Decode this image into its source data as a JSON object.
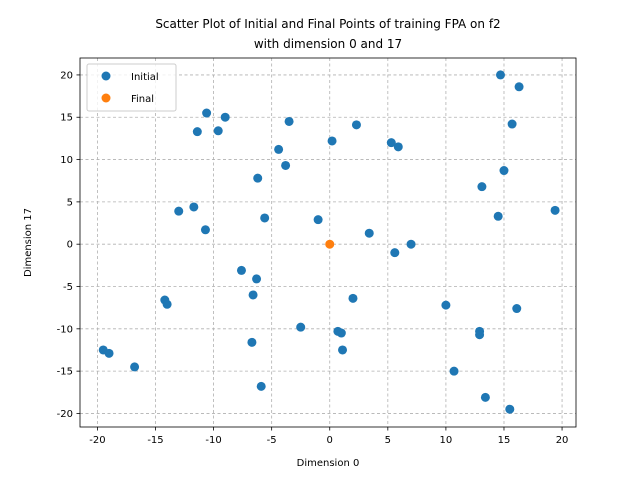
{
  "chart_data": {
    "type": "scatter",
    "title": [
      "Scatter Plot of Initial and Final Points of training FPA on f2",
      "with dimension 0 and 17"
    ],
    "xlabel": "Dimension 0",
    "ylabel": "Dimension 17",
    "xlim": [
      -21.5,
      21.2
    ],
    "ylim": [
      -21.6,
      22.0
    ],
    "xticks": [
      -20,
      -15,
      -10,
      -5,
      0,
      5,
      10,
      15,
      20
    ],
    "yticks": [
      -20,
      -15,
      -10,
      -5,
      0,
      5,
      10,
      15,
      20
    ],
    "grid": true,
    "legend_position": "top-left",
    "series": [
      {
        "name": "Initial",
        "color": "#1f77b4",
        "points": [
          [
            14.7,
            20.0
          ],
          [
            16.3,
            18.6
          ],
          [
            -10.6,
            15.5
          ],
          [
            -9.0,
            15.0
          ],
          [
            -3.5,
            14.5
          ],
          [
            -11.4,
            13.3
          ],
          [
            -9.6,
            13.4
          ],
          [
            2.3,
            14.1
          ],
          [
            15.7,
            14.2
          ],
          [
            0.2,
            12.2
          ],
          [
            5.3,
            12.0
          ],
          [
            5.9,
            11.5
          ],
          [
            -4.4,
            11.2
          ],
          [
            -3.8,
            9.3
          ],
          [
            15.0,
            8.7
          ],
          [
            -6.2,
            7.8
          ],
          [
            13.1,
            6.8
          ],
          [
            -11.7,
            4.4
          ],
          [
            -13.0,
            3.9
          ],
          [
            -5.6,
            3.1
          ],
          [
            -1.0,
            2.9
          ],
          [
            14.5,
            3.3
          ],
          [
            19.4,
            4.0
          ],
          [
            -10.7,
            1.7
          ],
          [
            3.4,
            1.3
          ],
          [
            7.0,
            0.0
          ],
          [
            5.6,
            -1.0
          ],
          [
            -7.6,
            -3.1
          ],
          [
            -6.3,
            -4.1
          ],
          [
            -6.6,
            -6.0
          ],
          [
            2.0,
            -6.4
          ],
          [
            -14.2,
            -6.6
          ],
          [
            -14.0,
            -7.1
          ],
          [
            10.0,
            -7.2
          ],
          [
            16.1,
            -7.6
          ],
          [
            -2.5,
            -9.8
          ],
          [
            0.7,
            -10.3
          ],
          [
            1.0,
            -10.5
          ],
          [
            12.9,
            -10.3
          ],
          [
            12.9,
            -10.7
          ],
          [
            -6.7,
            -11.6
          ],
          [
            1.1,
            -12.5
          ],
          [
            -19.5,
            -12.5
          ],
          [
            -19.0,
            -12.9
          ],
          [
            -16.8,
            -14.5
          ],
          [
            10.7,
            -15.0
          ],
          [
            -5.9,
            -16.8
          ],
          [
            13.4,
            -18.1
          ],
          [
            15.5,
            -19.5
          ]
        ]
      },
      {
        "name": "Final",
        "color": "#ff7f0e",
        "points": [
          [
            0.0,
            0.0
          ]
        ]
      }
    ]
  }
}
